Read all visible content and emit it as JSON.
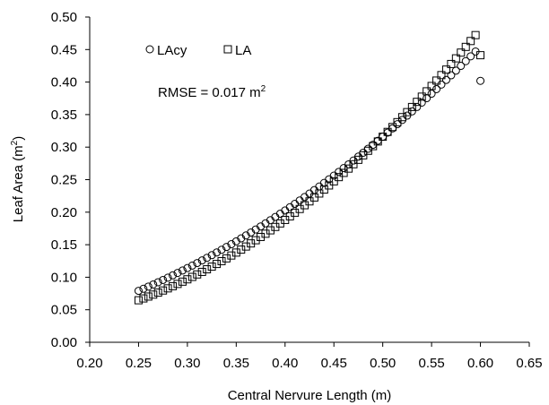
{
  "chart_data": {
    "type": "scatter",
    "title": "",
    "xlabel": "Central Nervure Length (m)",
    "ylabel": "Leaf Area (m2)",
    "ylabel_parts": {
      "main": "Leaf Area (m",
      "sup": "2",
      "end": ")"
    },
    "xlim": [
      0.2,
      0.65
    ],
    "ylim": [
      0.0,
      0.5
    ],
    "xticks": [
      "0.20",
      "0.25",
      "0.30",
      "0.35",
      "0.40",
      "0.45",
      "0.50",
      "0.55",
      "0.60",
      "0.65"
    ],
    "yticks": [
      "0.00",
      "0.05",
      "0.10",
      "0.15",
      "0.20",
      "0.25",
      "0.30",
      "0.35",
      "0.40",
      "0.45",
      "0.50"
    ],
    "grid": false,
    "legend_position": "top-left",
    "annotation": {
      "main": "RMSE = 0.017 m",
      "sup": "2"
    },
    "series": [
      {
        "name": "LAcy",
        "marker": "circle",
        "x": [
          0.25,
          0.255,
          0.26,
          0.265,
          0.27,
          0.275,
          0.28,
          0.285,
          0.29,
          0.295,
          0.3,
          0.305,
          0.31,
          0.315,
          0.32,
          0.325,
          0.33,
          0.335,
          0.34,
          0.345,
          0.35,
          0.355,
          0.36,
          0.365,
          0.37,
          0.375,
          0.38,
          0.385,
          0.39,
          0.395,
          0.4,
          0.405,
          0.41,
          0.415,
          0.42,
          0.425,
          0.43,
          0.435,
          0.44,
          0.445,
          0.45,
          0.455,
          0.46,
          0.465,
          0.47,
          0.475,
          0.48,
          0.485,
          0.49,
          0.495,
          0.5,
          0.505,
          0.51,
          0.515,
          0.52,
          0.525,
          0.53,
          0.535,
          0.54,
          0.545,
          0.55,
          0.555,
          0.56,
          0.565,
          0.57,
          0.575,
          0.58,
          0.585,
          0.59,
          0.595,
          0.6
        ],
        "y": [
          0.0791,
          0.0823,
          0.0856,
          0.0889,
          0.0923,
          0.0958,
          0.0993,
          0.1029,
          0.1066,
          0.1103,
          0.1141,
          0.1179,
          0.1218,
          0.1258,
          0.1298,
          0.1339,
          0.138,
          0.1422,
          0.1465,
          0.1508,
          0.1552,
          0.1597,
          0.1642,
          0.1688,
          0.1734,
          0.1781,
          0.1829,
          0.1877,
          0.1926,
          0.1976,
          0.2026,
          0.2077,
          0.2128,
          0.218,
          0.2233,
          0.2286,
          0.234,
          0.2395,
          0.245,
          0.2506,
          0.2562,
          0.2619,
          0.2677,
          0.2735,
          0.2794,
          0.2854,
          0.2914,
          0.2975,
          0.3036,
          0.3098,
          0.3161,
          0.3224,
          0.3288,
          0.3353,
          0.3418,
          0.3484,
          0.355,
          0.3617,
          0.3685,
          0.3753,
          0.3822,
          0.3892,
          0.3962,
          0.4033,
          0.4104,
          0.4176,
          0.4249,
          0.4322,
          0.4396,
          0.447,
          0.4019
        ]
      },
      {
        "name": "LA",
        "marker": "square",
        "x": [
          0.25,
          0.255,
          0.26,
          0.265,
          0.27,
          0.275,
          0.28,
          0.285,
          0.29,
          0.295,
          0.3,
          0.305,
          0.31,
          0.315,
          0.32,
          0.325,
          0.33,
          0.335,
          0.34,
          0.345,
          0.35,
          0.355,
          0.36,
          0.365,
          0.37,
          0.375,
          0.38,
          0.385,
          0.39,
          0.395,
          0.4,
          0.405,
          0.41,
          0.415,
          0.42,
          0.425,
          0.43,
          0.435,
          0.44,
          0.445,
          0.45,
          0.455,
          0.46,
          0.465,
          0.47,
          0.475,
          0.48,
          0.485,
          0.49,
          0.495,
          0.5,
          0.505,
          0.51,
          0.515,
          0.52,
          0.525,
          0.53,
          0.535,
          0.54,
          0.545,
          0.55,
          0.555,
          0.56,
          0.565,
          0.57,
          0.575,
          0.58,
          0.585,
          0.59,
          0.595,
          0.6
        ],
        "y": [
          0.0646,
          0.0674,
          0.0703,
          0.0733,
          0.0764,
          0.0796,
          0.0829,
          0.0862,
          0.0897,
          0.0932,
          0.0968,
          0.1005,
          0.1043,
          0.1082,
          0.1122,
          0.1163,
          0.1204,
          0.1247,
          0.129,
          0.1334,
          0.1379,
          0.1425,
          0.1472,
          0.152,
          0.1569,
          0.1619,
          0.1669,
          0.1721,
          0.1773,
          0.1827,
          0.1881,
          0.1936,
          0.1992,
          0.2049,
          0.2107,
          0.2166,
          0.2226,
          0.2287,
          0.2348,
          0.2411,
          0.2474,
          0.2539,
          0.2604,
          0.267,
          0.2737,
          0.2805,
          0.2874,
          0.2944,
          0.3015,
          0.3087,
          0.316,
          0.3234,
          0.3309,
          0.3384,
          0.3461,
          0.3538,
          0.3617,
          0.3696,
          0.3776,
          0.3858,
          0.394,
          0.4023,
          0.4107,
          0.4192,
          0.4278,
          0.4365,
          0.4453,
          0.4541,
          0.4631,
          0.4722,
          0.4413
        ]
      }
    ]
  }
}
